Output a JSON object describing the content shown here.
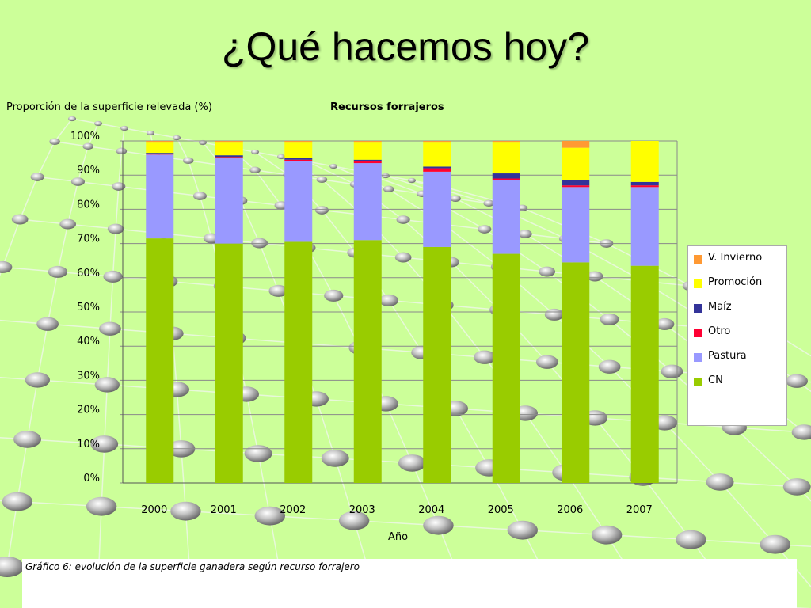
{
  "slide": {
    "title": "¿Qué hacemos hoy?"
  },
  "caption": "Gráfico 6: evolución de la superficie ganadera según recurso forrajero",
  "colors": {
    "background": "#ccff99",
    "V. Invierno": "#ff9933",
    "Promoción": "#ffff00",
    "Maíz": "#333399",
    "Otro": "#ff0033",
    "Pastura": "#9999ff",
    "CN": "#99cc00"
  },
  "chart_data": {
    "type": "bar",
    "stacked": true,
    "title": "Recursos forrajeros",
    "ylabel": "Proporción de la superficie relevada (%)",
    "xlabel": "Año",
    "categories": [
      "2000",
      "2001",
      "2002",
      "2003",
      "2004",
      "2005",
      "2006",
      "2007"
    ],
    "ylim": [
      0,
      100
    ],
    "yticks": [
      "0%",
      "10%",
      "20%",
      "30%",
      "40%",
      "50%",
      "60%",
      "70%",
      "80%",
      "90%",
      "100%"
    ],
    "grid": true,
    "legend": "right",
    "series": [
      {
        "name": "CN",
        "values": [
          71.5,
          70.0,
          70.5,
          71.0,
          69.0,
          67.0,
          64.5,
          63.5
        ]
      },
      {
        "name": "Pastura",
        "values": [
          24.5,
          25.0,
          23.5,
          22.5,
          22.0,
          21.5,
          22.0,
          23.0
        ]
      },
      {
        "name": "Otro",
        "values": [
          0.3,
          0.3,
          0.5,
          0.5,
          1.0,
          0.5,
          0.5,
          0.5
        ]
      },
      {
        "name": "Maíz",
        "values": [
          0.2,
          0.5,
          0.5,
          0.5,
          0.5,
          1.5,
          1.5,
          1.0
        ]
      },
      {
        "name": "Promoción",
        "values": [
          3.0,
          3.7,
          4.5,
          5.0,
          7.0,
          9.0,
          9.5,
          12.0
        ]
      },
      {
        "name": "V. Invierno",
        "values": [
          0.5,
          0.5,
          0.5,
          0.5,
          0.5,
          0.5,
          2.0,
          0.0
        ]
      }
    ],
    "legend_order": [
      "V. Invierno",
      "Promoción",
      "Maíz",
      "Otro",
      "Pastura",
      "CN"
    ]
  }
}
